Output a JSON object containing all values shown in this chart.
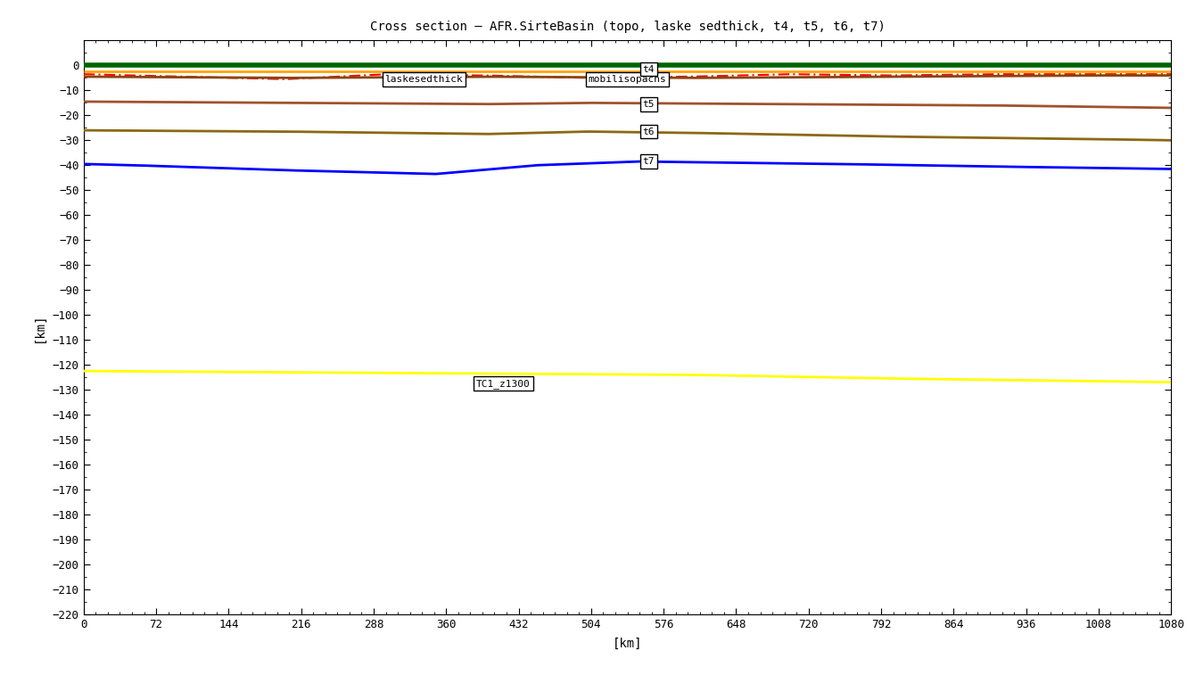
{
  "title": "Cross section – AFR.SirteBasin (topo, laske sedthick, t4, t5, t6, t7)",
  "xlabel": "[km]",
  "ylabel": "[km]",
  "xlim": [
    0,
    1080
  ],
  "ylim": [
    -220,
    10
  ],
  "xticks": [
    0,
    72,
    144,
    216,
    288,
    360,
    432,
    504,
    576,
    648,
    720,
    792,
    864,
    936,
    1008,
    1080
  ],
  "yticks": [
    0,
    -10,
    -20,
    -30,
    -40,
    -50,
    -60,
    -70,
    -80,
    -90,
    -100,
    -110,
    -120,
    -130,
    -140,
    -150,
    -160,
    -170,
    -180,
    -190,
    -200,
    -210,
    -220
  ],
  "background_color": "#ffffff",
  "topo_color": "#006400",
  "topo_lw": 4.0,
  "laske_color": "#FFA500",
  "laske_lw": 2.0,
  "mobilis_color": "#FF0000",
  "mobilis_lw": 1.5,
  "t4_color": "#8B4513",
  "t4_lw": 2.0,
  "t5_color": "#A0522D",
  "t5_lw": 2.0,
  "t6_color": "#8B6914",
  "t6_lw": 2.0,
  "t7_color": "#0000FF",
  "t7_lw": 2.0,
  "tc1_color": "#FFFF00",
  "tc1_lw": 2.0,
  "topo_y": 0.3,
  "laske_y": -2.5,
  "t4_y_pts_x": [
    0,
    200,
    400,
    600,
    800,
    1000,
    1080
  ],
  "t4_y_pts_y": [
    -4.5,
    -5.0,
    -4.5,
    -5.0,
    -4.5,
    -4.0,
    -4.0
  ],
  "t5_y_pts_x": [
    0,
    200,
    400,
    500,
    700,
    900,
    1080
  ],
  "t5_y_pts_y": [
    -14.5,
    -15.0,
    -15.5,
    -15.0,
    -15.5,
    -16.0,
    -17.0
  ],
  "t6_y_pts_x": [
    0,
    200,
    400,
    500,
    600,
    800,
    1000,
    1080
  ],
  "t6_y_pts_y": [
    -26.0,
    -26.5,
    -27.5,
    -26.5,
    -27.0,
    -28.5,
    -29.5,
    -30.0
  ],
  "t7_y_pts_x": [
    0,
    50,
    200,
    350,
    450,
    550,
    650,
    750,
    900,
    1080
  ],
  "t7_y_pts_y": [
    -39.5,
    -40.0,
    -42.0,
    -43.5,
    -40.0,
    -38.5,
    -39.0,
    -39.5,
    -40.5,
    -41.5
  ],
  "tc1_y_pts_x": [
    0,
    200,
    400,
    600,
    800,
    1000,
    1080
  ],
  "tc1_y_pts_y": [
    -122.5,
    -123.0,
    -123.5,
    -124.0,
    -125.5,
    -126.5,
    -127.0
  ],
  "mobilis_y_pts_x": [
    0,
    100,
    200,
    300,
    400,
    500,
    600,
    700,
    800,
    900,
    1000,
    1080
  ],
  "mobilis_y_pts_y": [
    -3.5,
    -4.5,
    -5.5,
    -3.5,
    -4.0,
    -5.0,
    -4.5,
    -3.5,
    -4.0,
    -3.5,
    -3.5,
    -3.5
  ],
  "ann_laskesedthick_x": 338,
  "ann_laskesedthick_y": -5.5,
  "ann_mobilisopachs_x": 540,
  "ann_mobilisopachs_y": -5.5,
  "ann_t4_x": 555,
  "ann_t4_y": -1.5,
  "ann_t5_x": 555,
  "ann_t5_y": -15.5,
  "ann_t6_x": 555,
  "ann_t6_y": -26.5,
  "ann_t7_x": 555,
  "ann_t7_y": -38.5,
  "ann_tc1_x": 390,
  "ann_tc1_y": -127.5,
  "title_fontsize": 10,
  "axis_label_fontsize": 10,
  "tick_fontsize": 9,
  "ann_fontsize": 8
}
